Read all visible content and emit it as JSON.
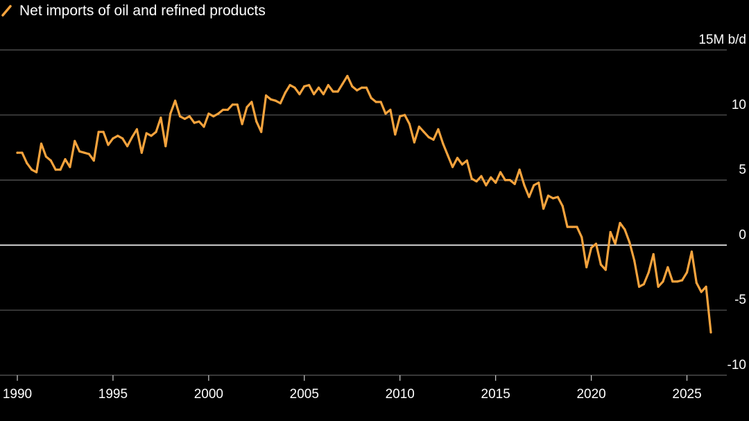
{
  "chart_data": {
    "type": "line",
    "title": "",
    "xlabel": "",
    "ylabel": "",
    "y_unit_label": "15M b/d",
    "legend_position": "top-left",
    "grid": true,
    "ylim": [
      -10,
      15
    ],
    "xlim": [
      1990,
      2027
    ],
    "x_ticks": [
      1990,
      1995,
      2000,
      2005,
      2010,
      2015,
      2020,
      2025
    ],
    "x_tick_labels": [
      "1990",
      "1995",
      "2000",
      "2005",
      "2010",
      "2015",
      "2020",
      "2025"
    ],
    "y_ticks": [
      15,
      10,
      5,
      0,
      -5,
      -10
    ],
    "y_tick_labels": [
      "15M b/d",
      "10",
      "5",
      "0",
      "-5",
      "-10"
    ],
    "colors": {
      "background": "#000000",
      "series": "#f5a33d",
      "gridline": "#5a5a5a",
      "zeroline": "#ffffff",
      "text": "#ffffff"
    },
    "series": [
      {
        "name": "Net imports of oil and refined products",
        "x": [
          1990.0,
          1990.25,
          1990.5,
          1990.75,
          1991.0,
          1991.25,
          1991.5,
          1991.75,
          1992.0,
          1992.25,
          1992.5,
          1992.75,
          1993.0,
          1993.25,
          1993.5,
          1993.75,
          1994.0,
          1994.25,
          1994.5,
          1994.75,
          1995.0,
          1995.25,
          1995.5,
          1995.75,
          1996.0,
          1996.25,
          1996.5,
          1996.75,
          1997.0,
          1997.25,
          1997.5,
          1997.75,
          1998.0,
          1998.25,
          1998.5,
          1998.75,
          1999.0,
          1999.25,
          1999.5,
          1999.75,
          2000.0,
          2000.25,
          2000.5,
          2000.75,
          2001.0,
          2001.25,
          2001.5,
          2001.75,
          2002.0,
          2002.25,
          2002.5,
          2002.75,
          2003.0,
          2003.25,
          2003.5,
          2003.75,
          2004.0,
          2004.25,
          2004.5,
          2004.75,
          2005.0,
          2005.25,
          2005.5,
          2005.75,
          2006.0,
          2006.25,
          2006.5,
          2006.75,
          2007.0,
          2007.25,
          2007.5,
          2007.75,
          2008.0,
          2008.25,
          2008.5,
          2008.75,
          2009.0,
          2009.25,
          2009.5,
          2009.75,
          2010.0,
          2010.25,
          2010.5,
          2010.75,
          2011.0,
          2011.25,
          2011.5,
          2011.75,
          2012.0,
          2012.25,
          2012.5,
          2012.75,
          2013.0,
          2013.25,
          2013.5,
          2013.75,
          2014.0,
          2014.25,
          2014.5,
          2014.75,
          2015.0,
          2015.25,
          2015.5,
          2015.75,
          2016.0,
          2016.25,
          2016.5,
          2016.75,
          2017.0,
          2017.25,
          2017.5,
          2017.75,
          2018.0,
          2018.25,
          2018.5,
          2018.75,
          2019.0,
          2019.25,
          2019.5,
          2019.75,
          2020.0,
          2020.25,
          2020.5,
          2020.75,
          2021.0,
          2021.25,
          2021.5,
          2021.75,
          2022.0,
          2022.25,
          2022.5,
          2022.75,
          2023.0,
          2023.25,
          2023.5,
          2023.75,
          2024.0,
          2024.25,
          2024.5,
          2024.75,
          2025.0,
          2025.25,
          2025.5,
          2025.75,
          2026.0,
          2026.25
        ],
        "values": [
          7.1,
          7.1,
          6.3,
          5.8,
          5.6,
          7.8,
          6.8,
          6.5,
          5.8,
          5.8,
          6.6,
          6.0,
          8.0,
          7.2,
          7.1,
          7.0,
          6.5,
          8.7,
          8.7,
          7.7,
          8.2,
          8.4,
          8.2,
          7.6,
          8.3,
          8.9,
          7.1,
          8.6,
          8.4,
          8.7,
          9.8,
          7.6,
          10.1,
          11.1,
          9.9,
          9.7,
          9.9,
          9.4,
          9.5,
          9.1,
          10.1,
          9.9,
          10.1,
          10.4,
          10.4,
          10.8,
          10.8,
          9.3,
          10.6,
          11.0,
          9.5,
          8.7,
          11.5,
          11.2,
          11.1,
          10.9,
          11.7,
          12.3,
          12.1,
          11.6,
          12.2,
          12.3,
          11.6,
          12.1,
          11.6,
          12.3,
          11.8,
          11.8,
          12.4,
          13.0,
          12.2,
          11.9,
          12.1,
          12.1,
          11.3,
          11.0,
          11.0,
          10.1,
          10.4,
          8.5,
          9.9,
          10.0,
          9.3,
          7.9,
          9.1,
          8.7,
          8.3,
          8.1,
          8.9,
          7.8,
          6.9,
          6.0,
          6.7,
          6.2,
          6.5,
          5.1,
          4.9,
          5.3,
          4.6,
          5.2,
          4.8,
          5.6,
          5.0,
          5.0,
          4.7,
          5.8,
          4.6,
          3.7,
          4.6,
          4.8,
          2.8,
          3.8,
          3.6,
          3.7,
          3.0,
          1.4,
          1.4,
          1.4,
          0.6,
          -1.7,
          -0.2,
          0.1,
          -1.5,
          -1.9,
          1.0,
          0.1,
          1.7,
          1.2,
          0.2,
          -1.2,
          -3.2,
          -3.0,
          -2.1,
          -0.7,
          -3.2,
          -2.8,
          -1.7,
          -2.8,
          -2.8,
          -2.7,
          -2.1,
          -0.5,
          -2.9,
          -3.6,
          -3.2,
          -6.7
        ]
      }
    ]
  },
  "legend": {
    "label": "Net imports of oil and refined products"
  }
}
